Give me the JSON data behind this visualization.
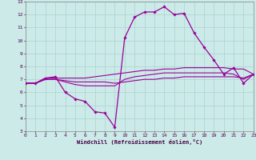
{
  "xlabel": "Windchill (Refroidissement éolien,°C)",
  "x_ticks": [
    0,
    1,
    2,
    3,
    4,
    5,
    6,
    7,
    8,
    9,
    10,
    11,
    12,
    13,
    14,
    15,
    16,
    17,
    18,
    19,
    20,
    21,
    22,
    23
  ],
  "ylim": [
    3,
    13
  ],
  "xlim": [
    0,
    23
  ],
  "y_ticks": [
    3,
    4,
    5,
    6,
    7,
    8,
    9,
    10,
    11,
    12,
    13
  ],
  "bg_color": "#cceae8",
  "grid_color": "#aad4d2",
  "line_color": "#990099",
  "series": {
    "main": {
      "x": [
        0,
        1,
        2,
        3,
        4,
        5,
        6,
        7,
        8,
        9,
        10,
        11,
        12,
        13,
        14,
        15,
        16,
        17,
        18,
        19,
        20,
        21,
        22,
        23
      ],
      "y": [
        6.7,
        6.7,
        7.1,
        7.2,
        6.0,
        5.5,
        5.3,
        4.5,
        4.4,
        3.3,
        10.2,
        11.8,
        12.2,
        12.2,
        12.6,
        12.0,
        12.1,
        10.6,
        9.5,
        8.5,
        7.4,
        7.9,
        6.7,
        7.4
      ]
    },
    "flat1": {
      "x": [
        0,
        1,
        2,
        3,
        4,
        5,
        6,
        7,
        8,
        9,
        10,
        11,
        12,
        13,
        14,
        15,
        16,
        17,
        18,
        19,
        20,
        21,
        22,
        23
      ],
      "y": [
        6.7,
        6.7,
        7.1,
        7.1,
        7.1,
        7.1,
        7.1,
        7.2,
        7.3,
        7.4,
        7.5,
        7.6,
        7.7,
        7.7,
        7.8,
        7.8,
        7.9,
        7.9,
        7.9,
        7.9,
        7.9,
        7.8,
        7.8,
        7.4
      ]
    },
    "flat2": {
      "x": [
        0,
        1,
        2,
        3,
        4,
        5,
        6,
        7,
        8,
        9,
        10,
        11,
        12,
        13,
        14,
        15,
        16,
        17,
        18,
        19,
        20,
        21,
        22,
        23
      ],
      "y": [
        6.7,
        6.7,
        7.0,
        7.0,
        6.9,
        6.8,
        6.8,
        6.8,
        6.8,
        6.7,
        6.8,
        6.9,
        7.0,
        7.0,
        7.1,
        7.1,
        7.2,
        7.2,
        7.2,
        7.2,
        7.2,
        7.2,
        7.1,
        7.4
      ]
    },
    "flat3": {
      "x": [
        0,
        1,
        2,
        3,
        4,
        5,
        6,
        7,
        8,
        9,
        10,
        11,
        12,
        13,
        14,
        15,
        16,
        17,
        18,
        19,
        20,
        21,
        22,
        23
      ],
      "y": [
        6.7,
        6.7,
        7.0,
        7.0,
        6.8,
        6.6,
        6.5,
        6.5,
        6.5,
        6.5,
        7.0,
        7.2,
        7.3,
        7.4,
        7.5,
        7.5,
        7.5,
        7.5,
        7.5,
        7.5,
        7.5,
        7.4,
        7.0,
        7.4
      ]
    }
  }
}
